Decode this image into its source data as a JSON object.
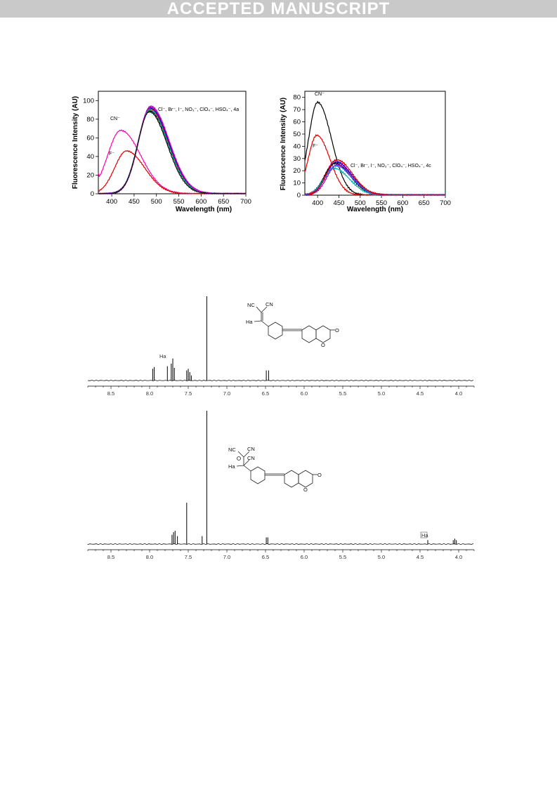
{
  "banner": "ACCEPTED MANUSCRIPT",
  "chart_data": [
    {
      "type": "line",
      "xlabel": "Wavelength (nm)",
      "ylabel": "Fluorescence Intensity (AU)",
      "xlim": [
        370,
        700
      ],
      "ylim": [
        0,
        110
      ],
      "xticks": [
        400,
        450,
        500,
        550,
        600,
        650,
        700
      ],
      "yticks": [
        0,
        20,
        40,
        60,
        80,
        100
      ],
      "annotations": [
        "CN⁻",
        "F⁻",
        "Cl⁻, Br⁻, I⁻, NO₃⁻, ClO₄⁻, HSO₄⁻, 4a"
      ],
      "series": [
        {
          "name": "CN⁻",
          "color": "#ff00aa",
          "peak_x": 420,
          "peak_y": 68,
          "width": 55,
          "base_y": 22
        },
        {
          "name": "F⁻",
          "color": "#e00000",
          "peak_x": 433,
          "peak_y": 46,
          "width": 50,
          "base_y": 2
        },
        {
          "color": "#000000",
          "peak_x": 485,
          "peak_y": 89,
          "width": 50,
          "base_y": 0
        },
        {
          "color": "#ff0000",
          "peak_x": 486,
          "peak_y": 91,
          "width": 50,
          "base_y": 0
        },
        {
          "color": "#0000cc",
          "peak_x": 486,
          "peak_y": 92,
          "width": 51,
          "base_y": 0
        },
        {
          "color": "#aa00aa",
          "peak_x": 487,
          "peak_y": 93,
          "width": 51,
          "base_y": 0
        },
        {
          "color": "#00aa88",
          "peak_x": 485,
          "peak_y": 90,
          "width": 50,
          "base_y": 0
        },
        {
          "color": "#cc00cc",
          "peak_x": 487,
          "peak_y": 94,
          "width": 51,
          "base_y": 0
        },
        {
          "color": "#111111",
          "peak_x": 484,
          "peak_y": 88,
          "width": 49,
          "base_y": 0
        }
      ]
    },
    {
      "type": "line",
      "xlabel": "Wavelength (nm)",
      "ylabel": "Fluorescence Intensity (AU)",
      "xlim": [
        370,
        700
      ],
      "ylim": [
        0,
        85
      ],
      "xticks": [
        400,
        450,
        500,
        550,
        600,
        650,
        700
      ],
      "yticks": [
        0,
        10,
        20,
        30,
        40,
        50,
        60,
        70,
        80
      ],
      "annotations": [
        "CN⁻",
        "F⁻",
        "Cl⁻, Br⁻, I⁻, NO₃⁻, ClO₄⁻, HSO₄⁻, 4c"
      ],
      "series": [
        {
          "name": "CN⁻",
          "color": "#000000",
          "peak_x": 400,
          "peak_y": 76,
          "width": 40,
          "base_y": 0
        },
        {
          "name": "F⁻",
          "color": "#e00000",
          "peak_x": 398,
          "peak_y": 49,
          "width": 38,
          "base_y": 0
        },
        {
          "color": "#ff00aa",
          "peak_x": 442,
          "peak_y": 28,
          "width": 45,
          "base_y": 0
        },
        {
          "color": "#0000cc",
          "peak_x": 444,
          "peak_y": 27,
          "width": 45,
          "base_y": 0
        },
        {
          "color": "#000000",
          "peak_x": 440,
          "peak_y": 26,
          "width": 45,
          "base_y": 0
        },
        {
          "color": "#00aaaa",
          "peak_x": 438,
          "peak_y": 22,
          "width": 45,
          "base_y": 0
        },
        {
          "color": "#aa00aa",
          "peak_x": 446,
          "peak_y": 25,
          "width": 44,
          "base_y": 0
        },
        {
          "color": "#3366ff",
          "peak_x": 443,
          "peak_y": 24,
          "width": 46,
          "base_y": 0
        },
        {
          "color": "#cc0000",
          "peak_x": 445,
          "peak_y": 29,
          "width": 45,
          "base_y": 0
        }
      ]
    }
  ],
  "nmr": [
    {
      "xlim": [
        8.8,
        3.8
      ],
      "xticks": [
        "8.5",
        "8.0",
        "7.5",
        "7.0",
        "6.5",
        "6.0",
        "5.5",
        "5.0",
        "4.5",
        "4.0"
      ],
      "peak_label": "Ha",
      "molecule_labels": [
        "NC",
        "CN",
        "Ha",
        "O",
        "O"
      ],
      "peaks": [
        [
          7.96,
          0.14
        ],
        [
          7.94,
          0.16
        ],
        [
          7.77,
          0.17
        ],
        [
          7.72,
          0.2
        ],
        [
          7.7,
          0.26
        ],
        [
          7.68,
          0.15
        ],
        [
          7.52,
          0.12
        ],
        [
          7.5,
          0.14
        ],
        [
          7.48,
          0.1
        ],
        [
          7.46,
          0.06
        ],
        [
          7.26,
          1.0
        ],
        [
          6.49,
          0.12
        ],
        [
          6.46,
          0.12
        ]
      ]
    },
    {
      "xlim": [
        8.8,
        3.8
      ],
      "xticks": [
        "8.5",
        "8.0",
        "7.5",
        "7.0",
        "6.5",
        "6.0",
        "5.5",
        "5.0",
        "4.5",
        "4.0"
      ],
      "peak_label": "Ha",
      "molecule_labels": [
        "NC",
        "CN",
        "CN",
        "Ha",
        "O",
        "O"
      ],
      "peaks": [
        [
          7.71,
          0.07
        ],
        [
          7.69,
          0.09
        ],
        [
          7.67,
          0.1
        ],
        [
          7.64,
          0.06
        ],
        [
          7.52,
          0.31
        ],
        [
          7.32,
          0.06
        ],
        [
          7.26,
          1.0
        ],
        [
          6.49,
          0.05
        ],
        [
          6.47,
          0.05
        ],
        [
          4.4,
          0.03
        ],
        [
          4.07,
          0.03
        ],
        [
          4.05,
          0.04
        ],
        [
          4.03,
          0.03
        ]
      ]
    }
  ]
}
